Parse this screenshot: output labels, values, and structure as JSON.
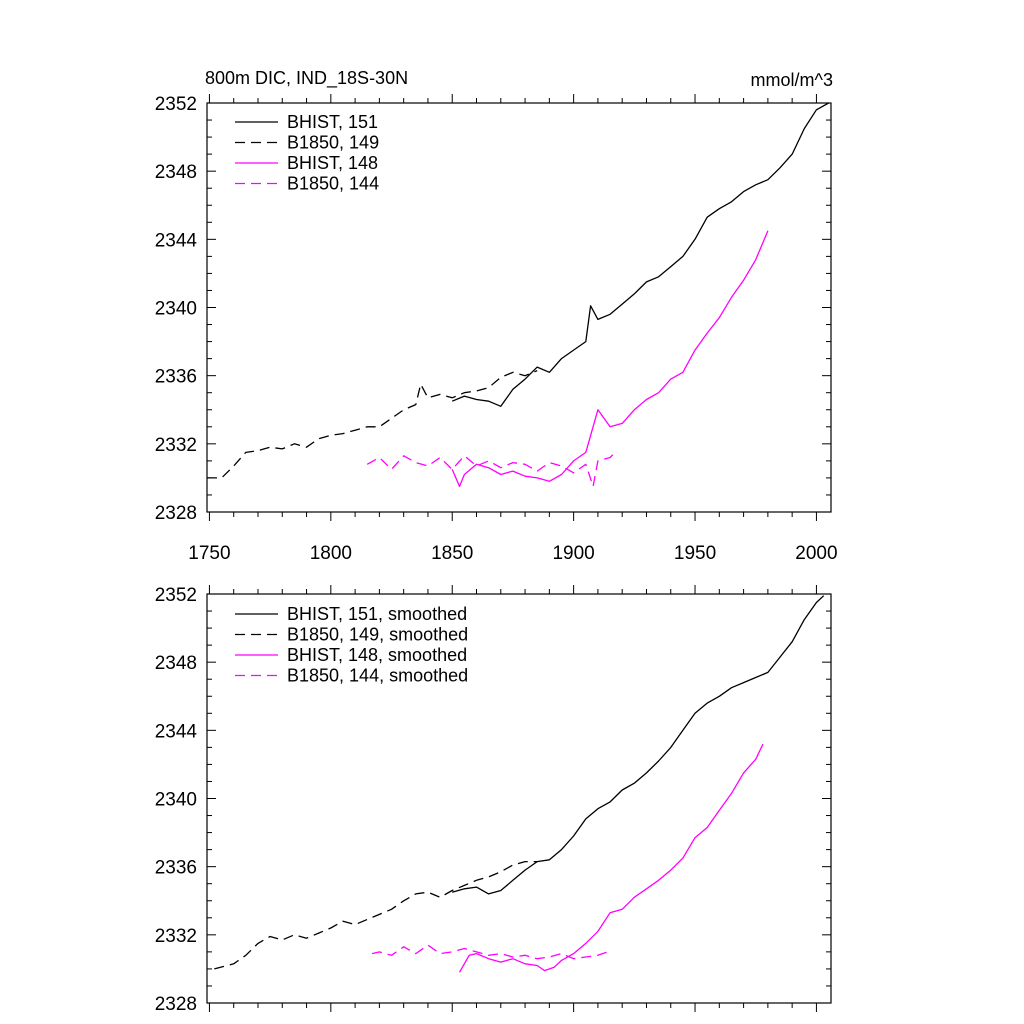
{
  "title": "800m DIC, IND_18S-30N",
  "units": "mmol/m^3",
  "series_styles": [
    {
      "color": "#000000",
      "dash": ""
    },
    {
      "color": "#000000",
      "dash": "10,6"
    },
    {
      "color": "#ff00ff",
      "dash": ""
    },
    {
      "color": "#ff00ff",
      "dash": "10,6"
    }
  ],
  "chart_data": [
    {
      "type": "line",
      "title": "800m DIC, IND_18S-30N",
      "ylabel": "mmol/m^3",
      "xlim": [
        1749,
        2006
      ],
      "ylim": [
        2328,
        2352
      ],
      "xticks": [
        1750,
        1800,
        1850,
        1900,
        1950,
        2000
      ],
      "xtick_labels": [
        "1750",
        "1800",
        "1850",
        "1900",
        "1950",
        "2000"
      ],
      "yticks": [
        2328,
        2332,
        2336,
        2340,
        2344,
        2348,
        2352
      ],
      "ytick_labels": [
        "2328",
        "2332",
        "2336",
        "2340",
        "2344",
        "2348",
        "2352"
      ],
      "legend_position": "top-left",
      "series": [
        {
          "name": "BHIST, 151",
          "x": [
            1850,
            1855,
            1860,
            1865,
            1870,
            1875,
            1880,
            1885,
            1890,
            1895,
            1900,
            1905,
            1907,
            1910,
            1915,
            1920,
            1925,
            1930,
            1935,
            1940,
            1945,
            1950,
            1955,
            1960,
            1965,
            1970,
            1975,
            1980,
            1985,
            1990,
            1995,
            2000,
            2005
          ],
          "y": [
            2334.5,
            2334.8,
            2334.6,
            2334.5,
            2334.2,
            2335.2,
            2335.8,
            2336.5,
            2336.2,
            2337.0,
            2337.5,
            2338.0,
            2340.1,
            2339.3,
            2339.6,
            2340.2,
            2340.8,
            2341.5,
            2341.8,
            2342.4,
            2343.0,
            2344.0,
            2345.3,
            2345.8,
            2346.2,
            2346.8,
            2347.2,
            2347.5,
            2348.2,
            2349.0,
            2350.5,
            2351.6,
            2352.0
          ]
        },
        {
          "name": "B1850, 149",
          "x": [
            1749,
            1755,
            1760,
            1765,
            1770,
            1775,
            1780,
            1785,
            1790,
            1795,
            1800,
            1805,
            1810,
            1815,
            1820,
            1825,
            1830,
            1835,
            1837,
            1840,
            1845,
            1850,
            1855,
            1860,
            1865,
            1870,
            1875,
            1880,
            1885
          ],
          "y": [
            2330.0,
            2330.0,
            2330.7,
            2331.5,
            2331.6,
            2331.8,
            2331.7,
            2332.0,
            2331.8,
            2332.3,
            2332.5,
            2332.6,
            2332.8,
            2333.0,
            2333.0,
            2333.5,
            2334.0,
            2334.3,
            2335.5,
            2334.7,
            2334.9,
            2334.7,
            2335.0,
            2335.1,
            2335.3,
            2335.9,
            2336.2,
            2336.0,
            2336.3
          ]
        },
        {
          "name": "BHIST, 148",
          "x": [
            1850,
            1853,
            1855,
            1860,
            1865,
            1870,
            1875,
            1880,
            1885,
            1890,
            1895,
            1900,
            1905,
            1910,
            1915,
            1920,
            1925,
            1930,
            1935,
            1940,
            1945,
            1950,
            1955,
            1960,
            1965,
            1970,
            1975,
            1980
          ],
          "y": [
            2330.5,
            2329.5,
            2330.2,
            2330.8,
            2330.6,
            2330.2,
            2330.4,
            2330.1,
            2330.0,
            2329.8,
            2330.2,
            2331.0,
            2331.5,
            2334.0,
            2333.0,
            2333.2,
            2334.0,
            2334.6,
            2335.0,
            2335.8,
            2336.2,
            2337.5,
            2338.5,
            2339.4,
            2340.6,
            2341.6,
            2342.8,
            2344.5
          ]
        },
        {
          "name": "B1850, 144",
          "x": [
            1815,
            1820,
            1825,
            1830,
            1835,
            1840,
            1845,
            1850,
            1855,
            1860,
            1865,
            1870,
            1875,
            1880,
            1885,
            1890,
            1895,
            1900,
            1905,
            1908,
            1910,
            1915,
            1917
          ],
          "y": [
            2330.8,
            2331.2,
            2330.5,
            2331.3,
            2330.9,
            2330.7,
            2331.2,
            2330.5,
            2331.3,
            2330.7,
            2331.0,
            2330.6,
            2330.9,
            2330.8,
            2330.4,
            2330.9,
            2330.7,
            2330.3,
            2330.8,
            2329.5,
            2331.0,
            2331.2,
            2331.5
          ]
        }
      ]
    },
    {
      "type": "line",
      "xlim": [
        1749,
        2006
      ],
      "ylim": [
        2328,
        2352
      ],
      "xticks": [
        1750,
        1800,
        1850,
        1900,
        1950,
        2000
      ],
      "xtick_labels": [],
      "yticks": [
        2328,
        2332,
        2336,
        2340,
        2344,
        2348,
        2352
      ],
      "ytick_labels": [
        "2328",
        "2332",
        "2336",
        "2340",
        "2344",
        "2348",
        "2352"
      ],
      "legend_position": "top-left",
      "series": [
        {
          "name": "BHIST, 151, smoothed",
          "x": [
            1850,
            1855,
            1860,
            1865,
            1870,
            1875,
            1880,
            1885,
            1890,
            1895,
            1900,
            1905,
            1910,
            1915,
            1920,
            1925,
            1930,
            1935,
            1940,
            1945,
            1950,
            1955,
            1960,
            1965,
            1970,
            1975,
            1980,
            1985,
            1990,
            1995,
            2000,
            2003
          ],
          "y": [
            2334.5,
            2334.7,
            2334.8,
            2334.4,
            2334.6,
            2335.2,
            2335.8,
            2336.3,
            2336.4,
            2337.0,
            2337.8,
            2338.8,
            2339.4,
            2339.8,
            2340.5,
            2340.9,
            2341.5,
            2342.2,
            2343.0,
            2344.0,
            2345.0,
            2345.6,
            2346.0,
            2346.5,
            2346.8,
            2347.1,
            2347.4,
            2348.3,
            2349.2,
            2350.5,
            2351.5,
            2351.9
          ]
        },
        {
          "name": "B1850, 149, smoothed",
          "x": [
            1752,
            1760,
            1765,
            1770,
            1775,
            1780,
            1785,
            1790,
            1795,
            1800,
            1805,
            1810,
            1815,
            1820,
            1825,
            1830,
            1835,
            1840,
            1845,
            1850,
            1855,
            1860,
            1865,
            1870,
            1875,
            1880,
            1885
          ],
          "y": [
            2330.0,
            2330.3,
            2330.8,
            2331.5,
            2331.9,
            2331.7,
            2332.0,
            2331.8,
            2332.1,
            2332.4,
            2332.8,
            2332.6,
            2332.9,
            2333.2,
            2333.5,
            2334.0,
            2334.4,
            2334.5,
            2334.2,
            2334.6,
            2334.9,
            2335.2,
            2335.4,
            2335.7,
            2336.1,
            2336.3,
            2336.3
          ]
        },
        {
          "name": "BHIST, 148, smoothed",
          "x": [
            1853,
            1857,
            1860,
            1865,
            1870,
            1875,
            1880,
            1885,
            1888,
            1892,
            1895,
            1900,
            1905,
            1910,
            1915,
            1920,
            1925,
            1930,
            1935,
            1940,
            1945,
            1950,
            1955,
            1960,
            1965,
            1970,
            1975,
            1978
          ],
          "y": [
            2329.8,
            2330.8,
            2330.9,
            2330.6,
            2330.4,
            2330.6,
            2330.3,
            2330.2,
            2329.9,
            2330.1,
            2330.5,
            2330.9,
            2331.5,
            2332.2,
            2333.3,
            2333.5,
            2334.2,
            2334.7,
            2335.2,
            2335.8,
            2336.5,
            2337.7,
            2338.3,
            2339.3,
            2340.3,
            2341.5,
            2342.3,
            2343.2
          ]
        },
        {
          "name": "B1850, 144, smoothed",
          "x": [
            1817,
            1820,
            1825,
            1830,
            1835,
            1840,
            1845,
            1850,
            1855,
            1860,
            1865,
            1870,
            1875,
            1880,
            1885,
            1890,
            1895,
            1900,
            1905,
            1910,
            1914
          ],
          "y": [
            2330.9,
            2331.0,
            2330.8,
            2331.3,
            2330.9,
            2331.4,
            2330.9,
            2331.0,
            2331.2,
            2331.0,
            2330.8,
            2330.9,
            2330.7,
            2330.8,
            2330.6,
            2330.7,
            2330.9,
            2330.6,
            2330.7,
            2330.8,
            2331.0
          ]
        }
      ]
    }
  ]
}
